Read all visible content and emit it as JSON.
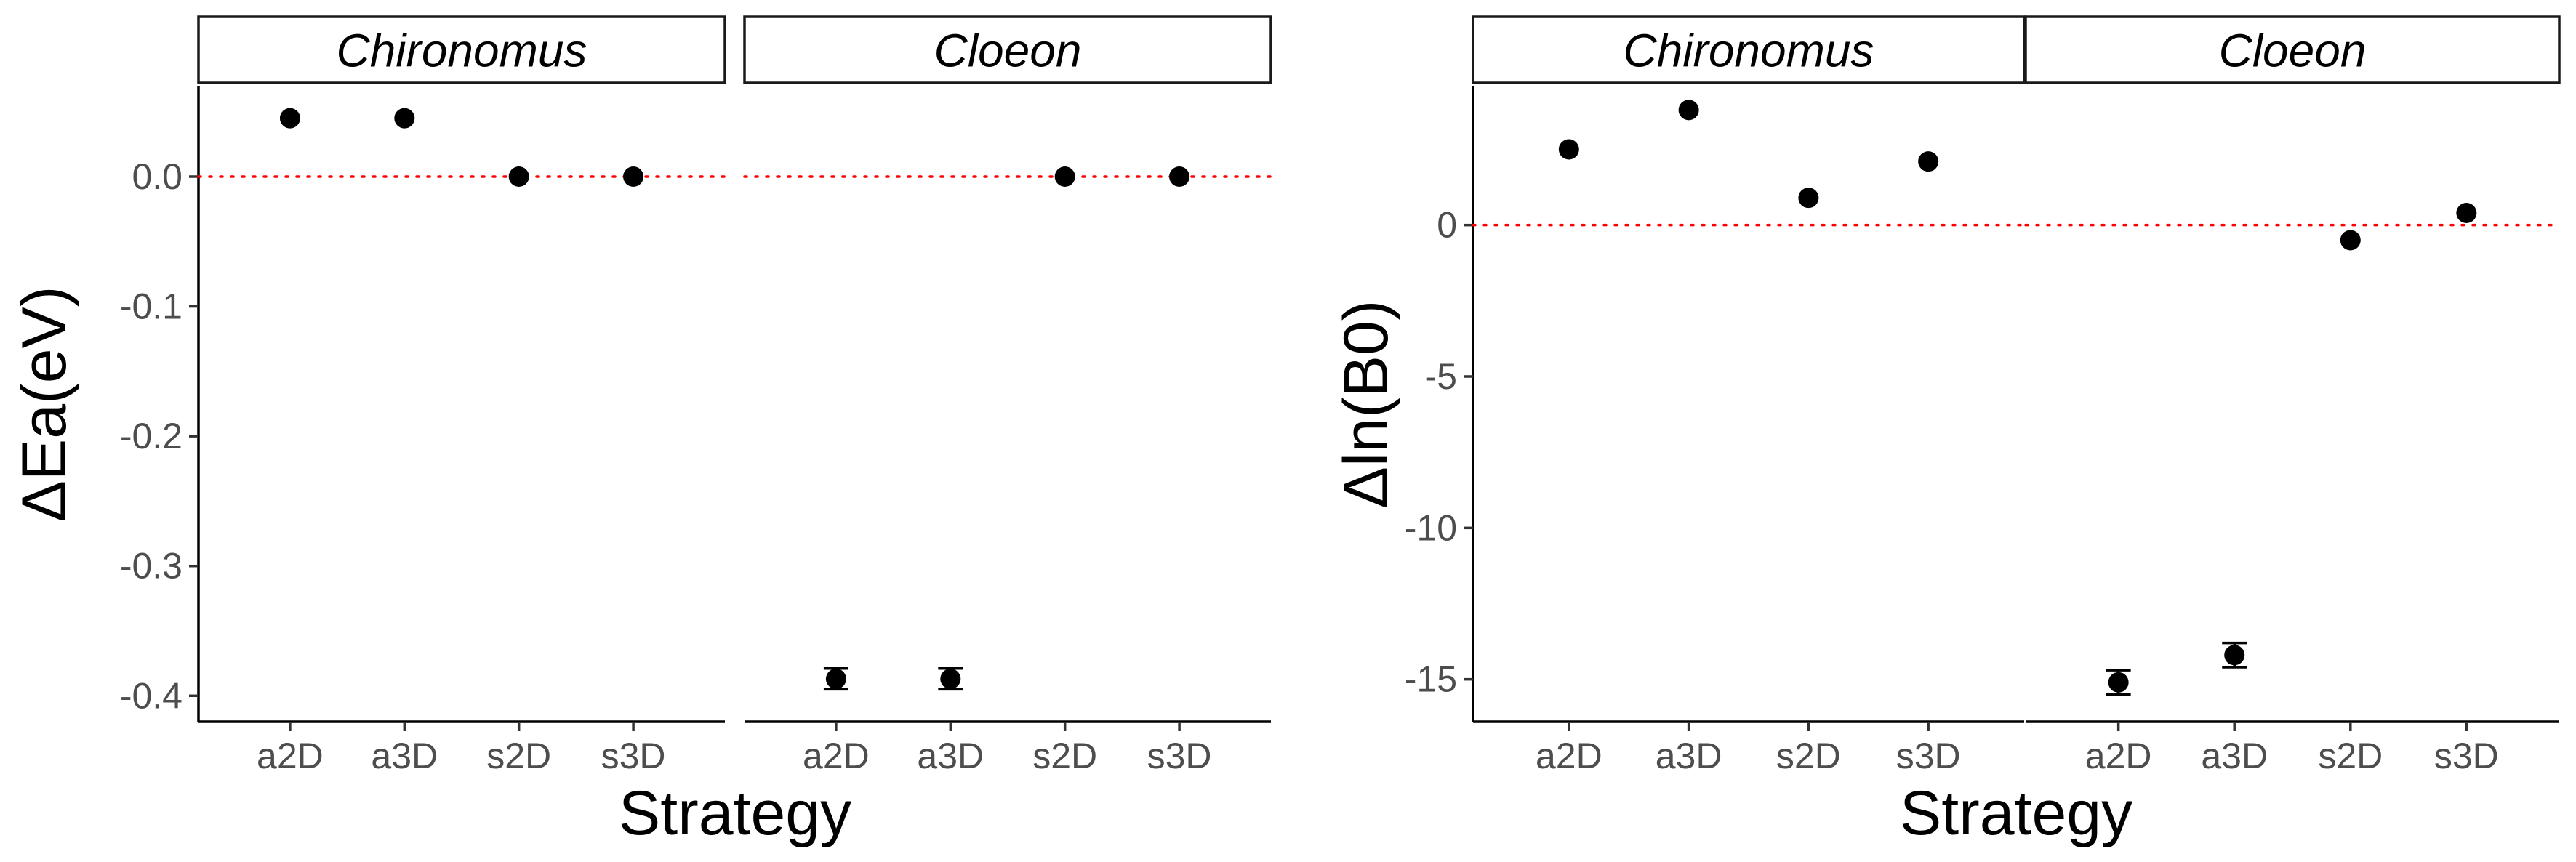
{
  "chart_data": [
    {
      "type": "scatter",
      "xlabel": "Strategy",
      "ylabel": "ΔEa(eV)",
      "categories": [
        "a2D",
        "a3D",
        "s2D",
        "s3D"
      ],
      "ylim": [
        -0.42,
        0.07
      ],
      "yticks": [
        0.0,
        -0.1,
        -0.2,
        -0.3,
        -0.4
      ],
      "ytick_labels": [
        "0.0",
        "-0.1",
        "-0.2",
        "-0.3",
        "-0.4"
      ],
      "reference_line": 0,
      "reference_color": "#ff0000",
      "point_color": "#000000",
      "grid": false,
      "facets": [
        {
          "label": "Chironomus",
          "values": [
            0.045,
            0.045,
            0.0,
            0.0
          ],
          "err_low": [
            0.045,
            0.045,
            0.0,
            0.0
          ],
          "err_high": [
            0.045,
            0.045,
            0.0,
            0.0
          ]
        },
        {
          "label": "Cloeon",
          "values": [
            -0.387,
            -0.387,
            0.0,
            0.0
          ],
          "err_low": [
            -0.395,
            -0.395,
            0.0,
            0.0
          ],
          "err_high": [
            -0.379,
            -0.379,
            0.0,
            0.0
          ]
        }
      ]
    },
    {
      "type": "scatter",
      "xlabel": "Strategy",
      "ylabel": "Δln(B0)",
      "categories": [
        "a2D",
        "a3D",
        "s2D",
        "s3D"
      ],
      "ylim": [
        -16.4,
        4.6
      ],
      "yticks": [
        0,
        -5,
        -10,
        -15
      ],
      "ytick_labels": [
        "0",
        "-5",
        "-10",
        "-15"
      ],
      "reference_line": 0,
      "reference_color": "#ff0000",
      "point_color": "#000000",
      "grid": false,
      "facets": [
        {
          "label": "Chironomus",
          "values": [
            2.5,
            3.8,
            0.9,
            2.1
          ],
          "err_low": [
            2.5,
            3.8,
            0.9,
            2.1
          ],
          "err_high": [
            2.5,
            3.8,
            0.9,
            2.1
          ]
        },
        {
          "label": "Cloeon",
          "values": [
            -15.1,
            -14.2,
            -0.5,
            0.4
          ],
          "err_low": [
            -15.5,
            -14.6,
            -0.5,
            0.4
          ],
          "err_high": [
            -14.7,
            -13.8,
            -0.5,
            0.4
          ]
        }
      ]
    }
  ]
}
